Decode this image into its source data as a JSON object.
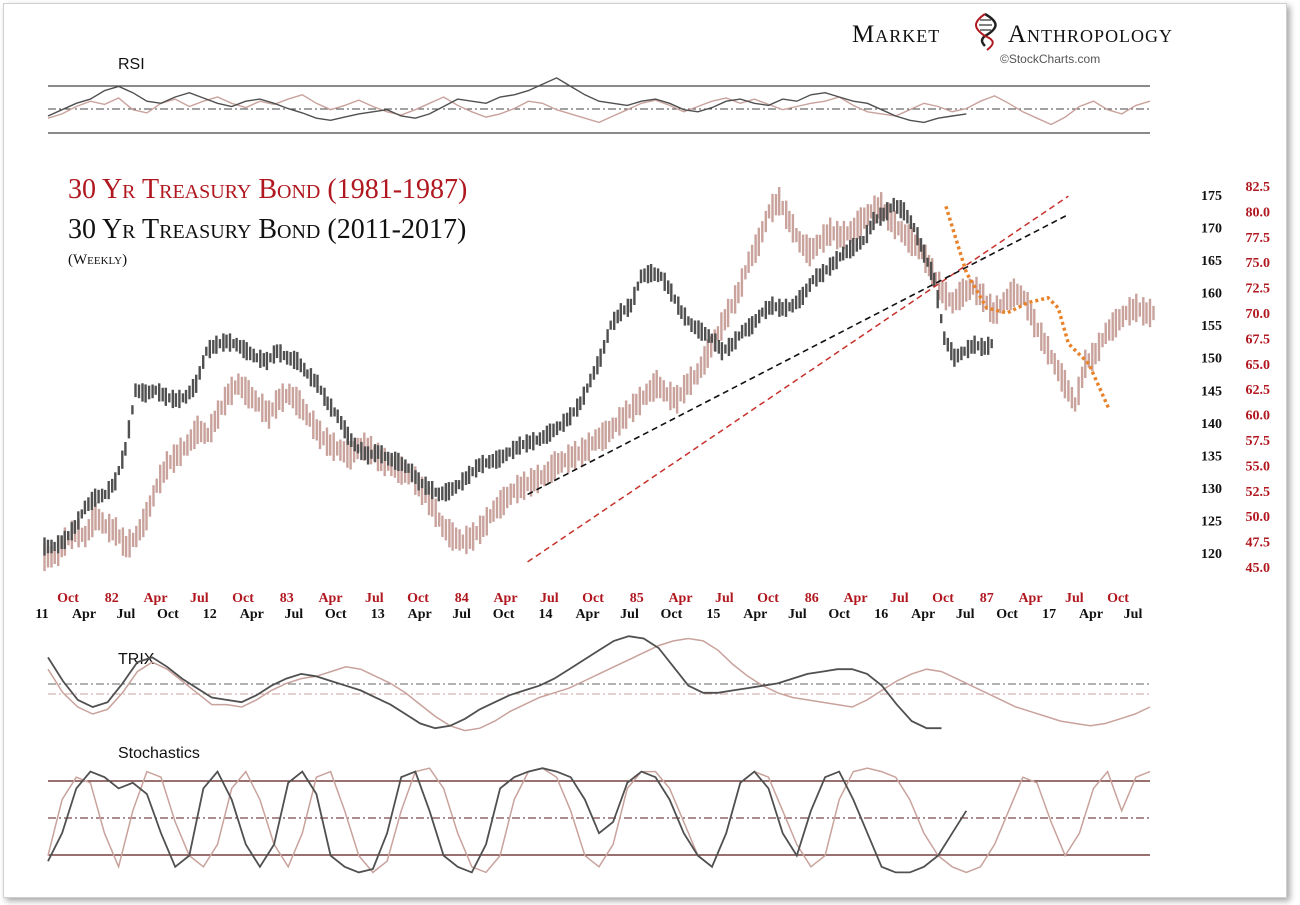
{
  "branding": {
    "logo_word1": "Market",
    "logo_word2": "Anthropology",
    "copyright": "©StockCharts.com"
  },
  "colors": {
    "series_1981": "#c9a29c",
    "series_2011": "#505050",
    "trend_red": "#c8312b",
    "trend_black": "#111111",
    "projection": "#e8832c",
    "red_label": "#b0171f"
  },
  "chart_data": [
    {
      "type": "line",
      "panel": "RSI",
      "title": "RSI",
      "reference_lines": [
        "upper",
        "mid-dashdot",
        "lower"
      ],
      "series": [
        {
          "key": "1981",
          "color": "#c9a29c",
          "values": [
            44,
            48,
            55,
            60,
            57,
            63,
            52,
            49,
            58,
            62,
            55,
            60,
            64,
            58,
            54,
            60,
            57,
            62,
            66,
            58,
            52,
            56,
            61,
            55,
            50,
            47,
            52,
            58,
            64,
            56,
            50,
            45,
            48,
            53,
            60,
            58,
            52,
            48,
            44,
            40,
            46,
            52,
            58,
            61,
            56,
            50,
            55,
            60,
            63,
            58,
            62,
            57,
            52,
            55,
            58,
            60,
            64,
            56,
            50,
            48,
            46,
            52,
            58,
            55,
            50,
            53,
            60,
            65,
            58,
            50,
            44,
            38,
            45,
            55,
            60,
            52,
            48,
            56,
            60
          ]
        },
        {
          "key": "2011",
          "color": "#505050",
          "values": [
            46,
            52,
            58,
            62,
            70,
            74,
            68,
            60,
            58,
            64,
            68,
            63,
            58,
            55,
            60,
            62,
            58,
            53,
            49,
            44,
            42,
            45,
            48,
            50,
            52,
            46,
            44,
            48,
            55,
            62,
            60,
            58,
            64,
            66,
            70,
            76,
            82,
            74,
            66,
            60,
            58,
            56,
            60,
            62,
            58,
            52,
            50,
            54,
            60,
            62,
            58,
            56,
            62,
            60,
            66,
            68,
            64,
            60,
            58,
            52,
            46,
            42,
            40,
            44,
            46,
            48,
            null,
            null,
            null,
            null,
            null,
            null,
            null,
            null,
            null,
            null,
            null,
            null,
            null
          ]
        }
      ]
    },
    {
      "type": "line",
      "panel": "Price",
      "title": "",
      "series": [
        {
          "name": "30 Yr Treasury Bond (1981-1987)",
          "key": "1981",
          "color": "#c9a29c",
          "axis": "right",
          "ylim": [
            45.0,
            82.5
          ],
          "values": [
            46,
            47.5,
            48.5,
            48,
            50,
            49,
            48.5,
            47,
            48,
            50,
            53,
            55,
            56,
            57,
            58.5,
            58,
            60,
            62,
            63,
            62,
            61,
            60,
            61.5,
            62,
            61,
            59.5,
            58,
            57,
            56.5,
            56,
            57,
            56.5,
            55.5,
            55,
            54.5,
            54,
            52.5,
            51,
            49,
            48,
            47.5,
            48,
            49,
            50.5,
            51.5,
            52.5,
            53,
            53.5,
            54,
            55,
            55.5,
            56,
            56.5,
            57.5,
            58,
            59,
            60,
            61,
            62,
            63,
            62,
            61.5,
            63,
            64,
            66,
            68,
            70,
            72,
            75,
            77,
            80,
            81,
            79,
            77,
            76,
            77,
            78,
            77.5,
            78,
            79,
            80,
            80.5,
            79,
            78,
            77,
            76,
            74,
            72,
            71,
            72,
            72.5,
            71.5,
            70,
            71,
            72,
            71.5,
            69,
            67,
            65,
            63,
            61,
            65,
            66,
            68,
            69,
            70,
            70.5,
            70,
            70
          ]
        },
        {
          "name": "30 Yr Treasury Bond (2011-2017)",
          "key": "2011",
          "color": "#505050",
          "axis": "left",
          "ylim": [
            119,
            176
          ],
          "values": [
            121,
            122,
            124,
            127,
            128.5,
            129,
            131,
            136,
            145,
            144.5,
            145,
            144,
            143.5,
            144,
            146,
            151,
            152,
            152.5,
            152,
            151,
            150,
            149.5,
            151,
            150,
            149.5,
            147.5,
            146,
            143,
            141,
            138,
            136,
            135,
            135.5,
            134.5,
            134,
            133,
            131,
            130,
            129,
            129.5,
            130.5,
            132,
            133.5,
            134,
            134.5,
            135.5,
            136.5,
            137,
            137.5,
            138.5,
            139.5,
            141,
            143,
            146.5,
            150,
            155,
            157,
            158,
            162.5,
            163,
            162.5,
            160,
            157,
            155,
            154,
            153,
            151,
            152,
            154,
            155,
            157,
            158,
            157.5,
            158,
            159.5,
            162,
            163,
            164.5,
            166,
            167,
            168,
            171,
            172,
            173.5,
            172.5,
            170,
            166,
            162,
            153,
            150,
            151,
            152,
            151.5,
            152.5,
            null,
            null,
            null,
            null,
            null,
            null,
            null,
            null,
            null,
            null,
            null,
            null,
            null,
            null,
            null,
            null
          ]
        }
      ],
      "y_axis_left": {
        "ticks": [
          120,
          125,
          130,
          135,
          140,
          145,
          150,
          155,
          160,
          165,
          170,
          175
        ]
      },
      "y_axis_right": {
        "ticks": [
          "45.0",
          "47.5",
          "50.0",
          "52.5",
          "55.0",
          "57.5",
          "60.0",
          "62.5",
          "65.0",
          "67.5",
          "70.0",
          "72.5",
          "75.0",
          "77.5",
          "80.0",
          "82.5"
        ]
      },
      "x_axis_red": {
        "ticks": [
          "Oct",
          "82",
          "Apr",
          "Jul",
          "Oct",
          "83",
          "Apr",
          "Jul",
          "Oct",
          "84",
          "Apr",
          "Jul",
          "Oct",
          "85",
          "Apr",
          "Jul",
          "Oct",
          "86",
          "Apr",
          "Jul",
          "Oct",
          "87",
          "Apr",
          "Jul",
          "Oct"
        ]
      },
      "x_axis_black": {
        "ticks": [
          "11",
          "Apr",
          "Jul",
          "Oct",
          "12",
          "Apr",
          "Jul",
          "Oct",
          "13",
          "Apr",
          "Jul",
          "Oct",
          "14",
          "Apr",
          "Jul",
          "Oct",
          "15",
          "Apr",
          "Jul",
          "Oct",
          "16",
          "Apr",
          "Jul",
          "Oct",
          "17",
          "Apr",
          "Jul"
        ]
      },
      "projection": {
        "color": "#e8832c",
        "points": [
          [
            88,
            80.5
          ],
          [
            90,
            74
          ],
          [
            92,
            70.5
          ],
          [
            94,
            70
          ],
          [
            96,
            71
          ],
          [
            98,
            71.5
          ],
          [
            99,
            70.5
          ],
          [
            100,
            67
          ],
          [
            102,
            65
          ],
          [
            104,
            60.5
          ]
        ]
      },
      "trendlines": [
        {
          "color": "#c8312b",
          "from": [
            47,
            45.5
          ],
          "to": [
            100,
            81.5
          ]
        },
        {
          "color": "#111111",
          "from": [
            47,
            129
          ],
          "to": [
            100,
            172
          ]
        }
      ]
    },
    {
      "type": "line",
      "panel": "TRIX",
      "title": "TRIX",
      "reference_lines": [
        "dashdot-dark",
        "dashdot-light"
      ],
      "series": [
        {
          "key": "1981",
          "color": "#c9a29c",
          "values": [
            60,
            40,
            28,
            22,
            26,
            40,
            58,
            66,
            60,
            50,
            40,
            30,
            30,
            28,
            34,
            42,
            48,
            52,
            54,
            58,
            62,
            60,
            54,
            48,
            40,
            30,
            20,
            12,
            8,
            10,
            16,
            24,
            30,
            36,
            40,
            44,
            50,
            56,
            62,
            68,
            74,
            80,
            84,
            86,
            84,
            76,
            64,
            54,
            46,
            40,
            36,
            34,
            32,
            30,
            28,
            34,
            42,
            50,
            56,
            60,
            58,
            52,
            46,
            40,
            34,
            28,
            24,
            20,
            16,
            14,
            12,
            14,
            18,
            22,
            28
          ]
        },
        {
          "key": "2011",
          "color": "#505050",
          "values": [
            70,
            50,
            34,
            28,
            32,
            48,
            66,
            70,
            62,
            52,
            44,
            36,
            34,
            32,
            38,
            46,
            52,
            56,
            54,
            50,
            46,
            42,
            36,
            30,
            22,
            14,
            10,
            12,
            18,
            26,
            32,
            38,
            42,
            46,
            52,
            60,
            68,
            76,
            84,
            88,
            86,
            78,
            62,
            46,
            40,
            40,
            42,
            44,
            46,
            48,
            52,
            56,
            58,
            60,
            60,
            56,
            46,
            30,
            16,
            10,
            10,
            null,
            null,
            null,
            null,
            null,
            null,
            null,
            null,
            null,
            null,
            null,
            null,
            null,
            null
          ]
        }
      ]
    },
    {
      "type": "line",
      "panel": "Stochastics",
      "title": "Stochastics",
      "reference_lines": [
        "upper",
        "mid-dashdot",
        "lower"
      ],
      "series": [
        {
          "key": "1981",
          "color": "#c9a29c",
          "values": [
            20,
            70,
            90,
            85,
            40,
            10,
            60,
            95,
            90,
            50,
            20,
            10,
            30,
            80,
            95,
            70,
            30,
            10,
            40,
            90,
            95,
            60,
            20,
            5,
            15,
            60,
            95,
            98,
            80,
            40,
            10,
            5,
            20,
            70,
            95,
            98,
            90,
            60,
            20,
            10,
            30,
            80,
            95,
            95,
            80,
            50,
            20,
            10,
            40,
            85,
            95,
            90,
            60,
            30,
            10,
            20,
            70,
            95,
            98,
            95,
            90,
            70,
            40,
            20,
            10,
            5,
            10,
            30,
            60,
            90,
            85,
            50,
            20,
            40,
            80,
            95,
            60,
            90,
            95
          ]
        },
        {
          "key": "2011",
          "color": "#505050",
          "values": [
            15,
            40,
            80,
            95,
            90,
            80,
            85,
            75,
            40,
            10,
            20,
            80,
            95,
            70,
            30,
            10,
            30,
            85,
            95,
            75,
            20,
            10,
            5,
            8,
            40,
            90,
            95,
            60,
            20,
            10,
            5,
            30,
            80,
            90,
            95,
            98,
            95,
            90,
            70,
            40,
            50,
            85,
            95,
            90,
            70,
            40,
            20,
            10,
            40,
            85,
            95,
            80,
            40,
            20,
            60,
            90,
            95,
            70,
            40,
            10,
            5,
            5,
            10,
            20,
            40,
            60,
            null,
            null,
            null,
            null,
            null,
            null,
            null,
            null,
            null,
            null,
            null,
            null,
            null
          ]
        }
      ]
    }
  ],
  "titles": {
    "line1": "30 Yr Treasury Bond (1981-1987)",
    "line2": "30 Yr Treasury Bond (2011-2017)",
    "line3": "(Weekly)"
  }
}
